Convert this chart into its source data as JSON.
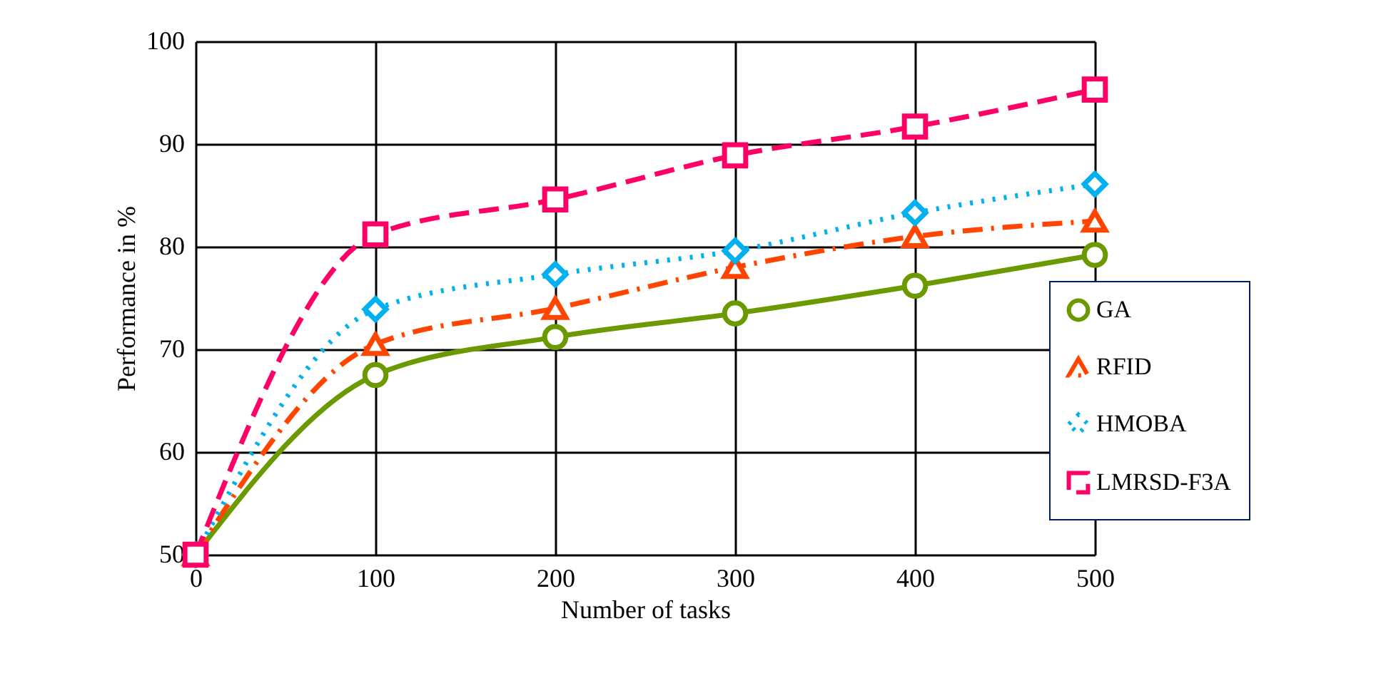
{
  "chart_data": {
    "type": "line",
    "xlabel": "Number of tasks",
    "ylabel": "Performance in %",
    "x": [
      0,
      100,
      200,
      300,
      400,
      500
    ],
    "xlim": [
      0,
      500
    ],
    "xticks": [
      0,
      100,
      200,
      300,
      400,
      500
    ],
    "ylim": [
      50,
      100
    ],
    "yticks": [
      50,
      60,
      70,
      80,
      90,
      100
    ],
    "grid": true,
    "legend": "right",
    "series": [
      {
        "name": "GA",
        "color": "#6a9a00",
        "marker": "circle",
        "line_style": "solid",
        "values": [
          50,
          67.5,
          71.2,
          73.5,
          76.2,
          79.2
        ]
      },
      {
        "name": "RFID",
        "color": "#ff4500",
        "marker": "triangle",
        "line_style": "dashdot",
        "values": [
          50,
          70.5,
          74,
          78,
          81,
          82.5
        ]
      },
      {
        "name": "HMOBA",
        "color": "#00b0f0",
        "marker": "diamond",
        "line_style": "dotted",
        "values": [
          50,
          73.9,
          77.3,
          79.6,
          83.3,
          86.1
        ]
      },
      {
        "name": "LMRSD-F3A",
        "color": "#ff0066",
        "marker": "square",
        "line_style": "dashed",
        "values": [
          50,
          81.2,
          84.6,
          88.9,
          91.7,
          95.3
        ]
      }
    ]
  }
}
